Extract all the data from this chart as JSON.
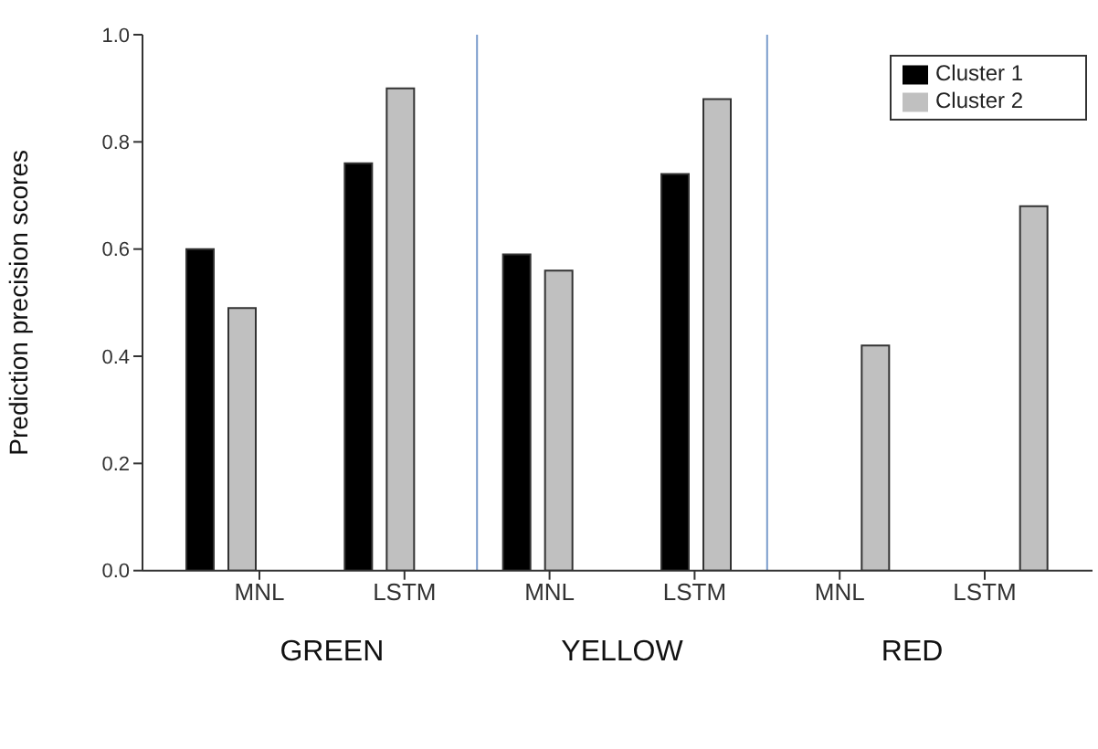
{
  "chart_data": {
    "type": "bar",
    "ylabel": "Prediction precision scores",
    "categories": [
      "MNL",
      "LSTM",
      "MNL",
      "LSTM",
      "MNL",
      "LSTM"
    ],
    "annotations": [
      "GREEN",
      "YELLOW",
      "RED"
    ],
    "series": [
      {
        "name": "Cluster 1",
        "color": "#000000",
        "values": [
          0.6,
          0.76,
          0.59,
          0.74,
          null,
          null
        ]
      },
      {
        "name": "Cluster 2",
        "color": "#c0c0c0",
        "values": [
          0.49,
          0.9,
          0.56,
          0.88,
          0.42,
          0.68
        ]
      }
    ],
    "ylim": [
      0,
      1
    ],
    "yticks": [
      {
        "value": 0,
        "label": "0.0"
      },
      {
        "value": 0.2,
        "label": "0.2"
      },
      {
        "value": 0.4,
        "label": "0.4"
      },
      {
        "value": 0.6,
        "label": "0.6"
      },
      {
        "value": 0.8,
        "label": "0.8"
      },
      {
        "value": 1,
        "label": "1.0"
      }
    ],
    "grid": false,
    "legend": "top right"
  }
}
